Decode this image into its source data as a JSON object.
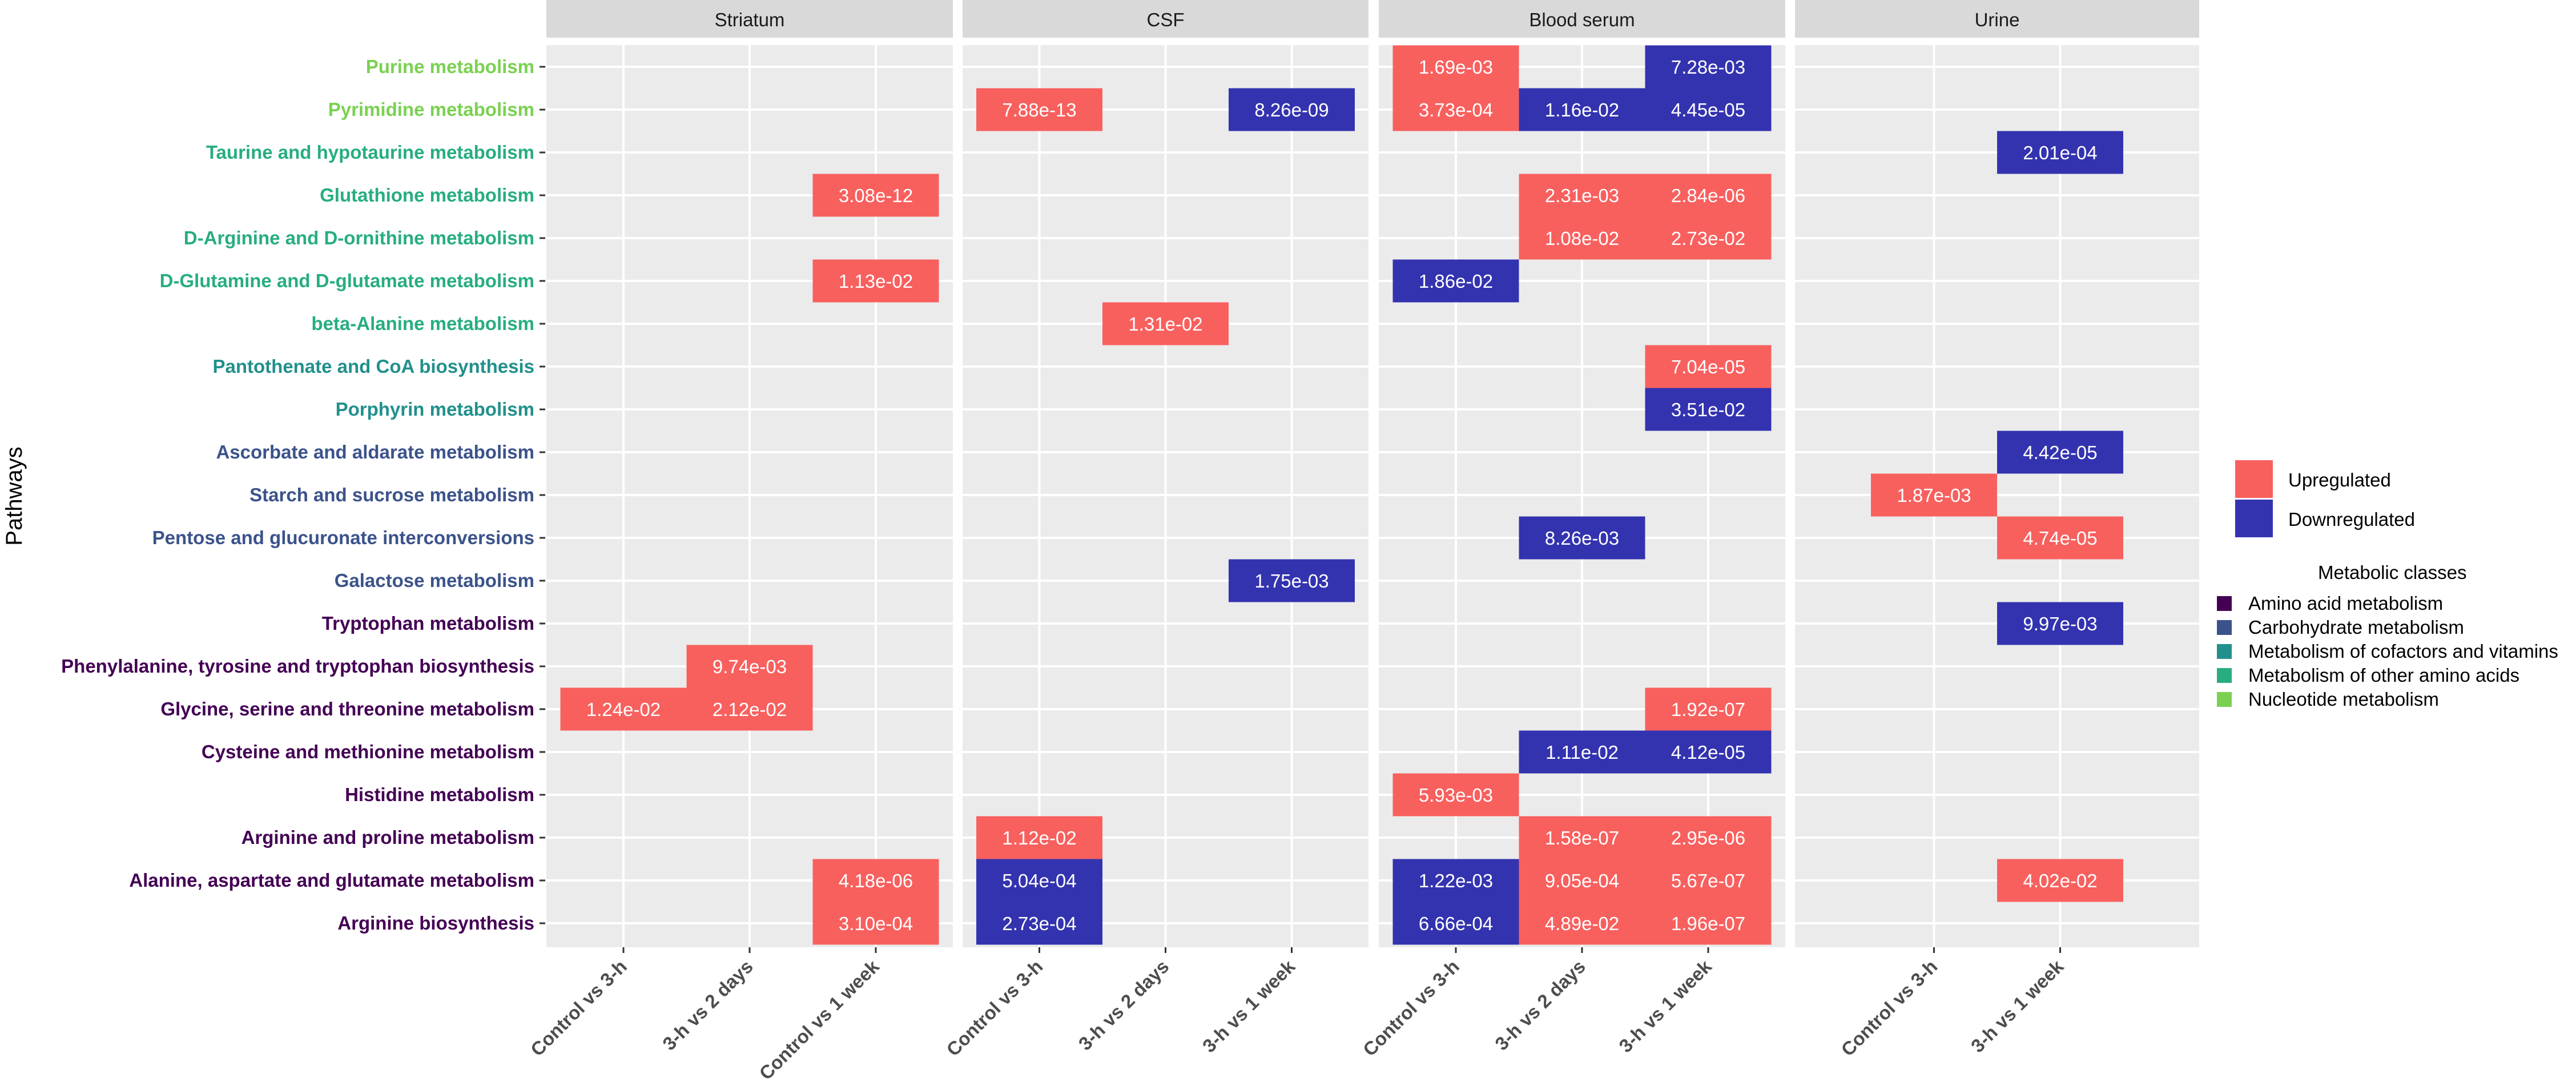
{
  "chart_data": {
    "type": "heatmap",
    "title": "",
    "ylabel": "Pathways",
    "xlabel": "",
    "panels": [
      {
        "name": "Striatum",
        "columns": [
          "Control vs 3-h",
          "3-h vs 2 days",
          "Control vs 1 week"
        ]
      },
      {
        "name": "CSF",
        "columns": [
          "Control vs 3-h",
          "3-h vs 2 days",
          "3-h vs 1 week"
        ]
      },
      {
        "name": "Blood serum",
        "columns": [
          "Control vs 3-h",
          "3-h vs 2 days",
          "3-h vs 1 week"
        ]
      },
      {
        "name": "Urine",
        "columns": [
          "Control vs 3-h",
          "3-h vs 1 week"
        ]
      }
    ],
    "pathways": [
      {
        "name": "Purine metabolism",
        "class": "Nucleotide metabolism"
      },
      {
        "name": "Pyrimidine metabolism",
        "class": "Nucleotide metabolism"
      },
      {
        "name": "Taurine and hypotaurine metabolism",
        "class": "Metabolism of other amino acids"
      },
      {
        "name": "Glutathione metabolism",
        "class": "Metabolism of other amino acids"
      },
      {
        "name": "D-Arginine and D-ornithine metabolism",
        "class": "Metabolism of other amino acids"
      },
      {
        "name": "D-Glutamine and D-glutamate metabolism",
        "class": "Metabolism of other amino acids"
      },
      {
        "name": "beta-Alanine metabolism",
        "class": "Metabolism of other amino acids"
      },
      {
        "name": "Pantothenate and CoA biosynthesis",
        "class": "Metabolism of cofactors and vitamins"
      },
      {
        "name": "Porphyrin metabolism",
        "class": "Metabolism of cofactors and vitamins"
      },
      {
        "name": "Ascorbate and aldarate metabolism",
        "class": "Carbohydrate metabolism"
      },
      {
        "name": "Starch and sucrose metabolism",
        "class": "Carbohydrate metabolism"
      },
      {
        "name": "Pentose and glucuronate interconversions",
        "class": "Carbohydrate metabolism"
      },
      {
        "name": "Galactose metabolism",
        "class": "Carbohydrate metabolism"
      },
      {
        "name": "Tryptophan metabolism",
        "class": "Amino acid metabolism"
      },
      {
        "name": "Phenylalanine, tyrosine and tryptophan biosynthesis",
        "class": "Amino acid metabolism"
      },
      {
        "name": "Glycine, serine and threonine metabolism",
        "class": "Amino acid metabolism"
      },
      {
        "name": "Cysteine and methionine metabolism",
        "class": "Amino acid metabolism"
      },
      {
        "name": "Histidine metabolism",
        "class": "Amino acid metabolism"
      },
      {
        "name": "Arginine and proline metabolism",
        "class": "Amino acid metabolism"
      },
      {
        "name": "Alanine, aspartate and glutamate metabolism",
        "class": "Amino acid metabolism"
      },
      {
        "name": "Arginine biosynthesis",
        "class": "Amino acid metabolism"
      }
    ],
    "cells": [
      {
        "panel": 0,
        "col": 1,
        "row": 14,
        "dir": "up",
        "label": "9.74e-03"
      },
      {
        "panel": 0,
        "col": 0,
        "row": 15,
        "dir": "up",
        "label": "1.24e-02"
      },
      {
        "panel": 0,
        "col": 1,
        "row": 15,
        "dir": "up",
        "label": "2.12e-02"
      },
      {
        "panel": 0,
        "col": 2,
        "row": 3,
        "dir": "up",
        "label": "3.08e-12"
      },
      {
        "panel": 0,
        "col": 2,
        "row": 5,
        "dir": "up",
        "label": "1.13e-02"
      },
      {
        "panel": 0,
        "col": 2,
        "row": 19,
        "dir": "up",
        "label": "4.18e-06"
      },
      {
        "panel": 0,
        "col": 2,
        "row": 20,
        "dir": "up",
        "label": "3.10e-04"
      },
      {
        "panel": 1,
        "col": 0,
        "row": 1,
        "dir": "up",
        "label": "7.88e-13"
      },
      {
        "panel": 1,
        "col": 2,
        "row": 1,
        "dir": "down",
        "label": "8.26e-09"
      },
      {
        "panel": 1,
        "col": 1,
        "row": 6,
        "dir": "up",
        "label": "1.31e-02"
      },
      {
        "panel": 1,
        "col": 2,
        "row": 12,
        "dir": "down",
        "label": "1.75e-03"
      },
      {
        "panel": 1,
        "col": 0,
        "row": 18,
        "dir": "up",
        "label": "1.12e-02"
      },
      {
        "panel": 1,
        "col": 0,
        "row": 19,
        "dir": "down",
        "label": "5.04e-04"
      },
      {
        "panel": 1,
        "col": 0,
        "row": 20,
        "dir": "down",
        "label": "2.73e-04"
      },
      {
        "panel": 2,
        "col": 0,
        "row": 0,
        "dir": "up",
        "label": "1.69e-03"
      },
      {
        "panel": 2,
        "col": 2,
        "row": 0,
        "dir": "down",
        "label": "7.28e-03"
      },
      {
        "panel": 2,
        "col": 0,
        "row": 1,
        "dir": "up",
        "label": "3.73e-04"
      },
      {
        "panel": 2,
        "col": 1,
        "row": 1,
        "dir": "down",
        "label": "1.16e-02"
      },
      {
        "panel": 2,
        "col": 2,
        "row": 1,
        "dir": "down",
        "label": "4.45e-05"
      },
      {
        "panel": 2,
        "col": 1,
        "row": 3,
        "dir": "up",
        "label": "2.31e-03"
      },
      {
        "panel": 2,
        "col": 2,
        "row": 3,
        "dir": "up",
        "label": "2.84e-06"
      },
      {
        "panel": 2,
        "col": 1,
        "row": 4,
        "dir": "up",
        "label": "1.08e-02"
      },
      {
        "panel": 2,
        "col": 2,
        "row": 4,
        "dir": "up",
        "label": "2.73e-02"
      },
      {
        "panel": 2,
        "col": 0,
        "row": 5,
        "dir": "down",
        "label": "1.86e-02"
      },
      {
        "panel": 2,
        "col": 2,
        "row": 7,
        "dir": "up",
        "label": "7.04e-05"
      },
      {
        "panel": 2,
        "col": 2,
        "row": 8,
        "dir": "down",
        "label": "3.51e-02"
      },
      {
        "panel": 2,
        "col": 1,
        "row": 11,
        "dir": "down",
        "label": "8.26e-03"
      },
      {
        "panel": 2,
        "col": 2,
        "row": 15,
        "dir": "up",
        "label": "1.92e-07"
      },
      {
        "panel": 2,
        "col": 1,
        "row": 16,
        "dir": "down",
        "label": "1.11e-02"
      },
      {
        "panel": 2,
        "col": 2,
        "row": 16,
        "dir": "down",
        "label": "4.12e-05"
      },
      {
        "panel": 2,
        "col": 0,
        "row": 17,
        "dir": "up",
        "label": "5.93e-03"
      },
      {
        "panel": 2,
        "col": 1,
        "row": 18,
        "dir": "up",
        "label": "1.58e-07"
      },
      {
        "panel": 2,
        "col": 2,
        "row": 18,
        "dir": "up",
        "label": "2.95e-06"
      },
      {
        "panel": 2,
        "col": 0,
        "row": 19,
        "dir": "down",
        "label": "1.22e-03"
      },
      {
        "panel": 2,
        "col": 1,
        "row": 19,
        "dir": "up",
        "label": "9.05e-04"
      },
      {
        "panel": 2,
        "col": 2,
        "row": 19,
        "dir": "up",
        "label": "5.67e-07"
      },
      {
        "panel": 2,
        "col": 0,
        "row": 20,
        "dir": "down",
        "label": "6.66e-04"
      },
      {
        "panel": 2,
        "col": 1,
        "row": 20,
        "dir": "up",
        "label": "4.89e-02"
      },
      {
        "panel": 2,
        "col": 2,
        "row": 20,
        "dir": "up",
        "label": "1.96e-07"
      },
      {
        "panel": 3,
        "col": 1,
        "row": 2,
        "dir": "down",
        "label": "2.01e-04"
      },
      {
        "panel": 3,
        "col": 1,
        "row": 9,
        "dir": "down",
        "label": "4.42e-05"
      },
      {
        "panel": 3,
        "col": 0,
        "row": 10,
        "dir": "up",
        "label": "1.87e-03"
      },
      {
        "panel": 3,
        "col": 1,
        "row": 11,
        "dir": "up",
        "label": "4.74e-05"
      },
      {
        "panel": 3,
        "col": 1,
        "row": 13,
        "dir": "down",
        "label": "9.97e-03"
      },
      {
        "panel": 3,
        "col": 1,
        "row": 19,
        "dir": "up",
        "label": "4.02e-02"
      }
    ],
    "legend_fill": [
      {
        "key": "up",
        "label": "Upregulated",
        "color": "#F8605E"
      },
      {
        "key": "down",
        "label": "Downregulated",
        "color": "#3333B0"
      }
    ],
    "legend_classes_title": "Metabolic classes",
    "legend_classes": [
      {
        "label": "Amino acid metabolism",
        "color": "#440154"
      },
      {
        "label": "Carbohydrate metabolism",
        "color": "#3B528B"
      },
      {
        "label": "Metabolism of cofactors and vitamins",
        "color": "#21908C"
      },
      {
        "label": "Metabolism of other amino acids",
        "color": "#27AD81"
      },
      {
        "label": "Nucleotide metabolism",
        "color": "#7AD151"
      }
    ],
    "colors": {
      "panel_bg": "#EBEBEB",
      "strip_bg": "#D9D9D9",
      "grid": "#FFFFFF",
      "cell_text": "#FFFFFF",
      "axis_text": "#4D4D4D"
    }
  }
}
